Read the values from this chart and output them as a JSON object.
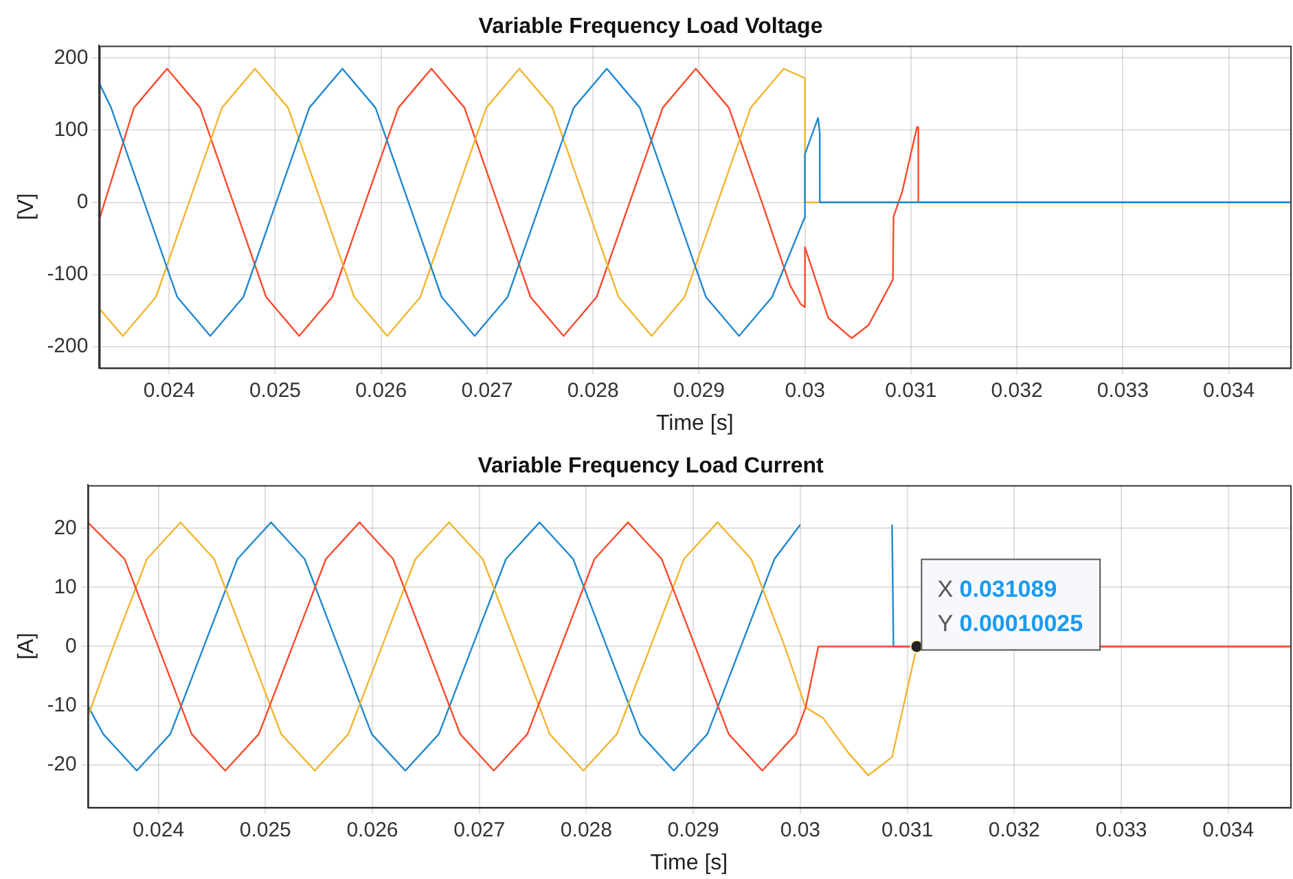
{
  "chart_data": [
    {
      "type": "line",
      "title": "Variable Frequency Load Voltage",
      "xlabel": "Time [s]",
      "ylabel": "[V]",
      "xlim": [
        0.02334,
        0.03458
      ],
      "xticks": [
        0.024,
        0.025,
        0.026,
        0.027,
        0.028,
        0.029,
        0.03,
        0.031,
        0.032,
        0.033,
        0.034
      ],
      "ylim": [
        -229,
        217
      ],
      "yticks": [
        -200,
        -100,
        0,
        100,
        200
      ],
      "grid": true,
      "legend": false,
      "marker": "none",
      "series": [
        {
          "color": "#fa4a2a",
          "x": [
            0.02334,
            0.023668,
            0.02398,
            0.024292,
            0.024604,
            0.024915,
            0.025227,
            0.025539,
            0.025851,
            0.026163,
            0.026475,
            0.026787,
            0.027098,
            0.02741,
            0.027722,
            0.028034,
            0.028346,
            0.028658,
            0.02897,
            0.029282,
            0.029594,
            0.02986,
            0.02996,
            0.03,
            0.03,
            0.03022,
            0.03044,
            0.0306,
            0.03083,
            0.030836,
            0.03092,
            0.031057,
            0.03107,
            0.03107,
            0.03458
          ],
          "values": [
            -24,
            131,
            185,
            131,
            0,
            -131,
            -185,
            -131,
            0,
            131,
            185,
            131,
            0,
            -131,
            -185,
            -131,
            0,
            131,
            185,
            131,
            0,
            -115,
            -141,
            -145,
            -62,
            -160,
            -188,
            -170,
            -107,
            -20,
            16,
            104,
            104,
            0,
            0
          ]
        },
        {
          "color": "#f2b52e",
          "x": [
            0.02334,
            0.023563,
            0.023875,
            0.024187,
            0.024498,
            0.02481,
            0.025122,
            0.025434,
            0.025746,
            0.026058,
            0.02637,
            0.026681,
            0.026993,
            0.027305,
            0.027617,
            0.027929,
            0.028241,
            0.028553,
            0.028864,
            0.029176,
            0.029488,
            0.0298,
            0.03,
            0.03,
            0.03458
          ],
          "values": [
            -147,
            -185,
            -131,
            0,
            131,
            185,
            131,
            0,
            -131,
            -185,
            -131,
            0,
            131,
            185,
            131,
            0,
            -131,
            -185,
            -131,
            0,
            131,
            185,
            172,
            0,
            0
          ]
        },
        {
          "color": "#1f88d0",
          "x": [
            0.02334,
            0.023452,
            0.023764,
            0.024076,
            0.024388,
            0.0247,
            0.025011,
            0.025323,
            0.025635,
            0.025947,
            0.026259,
            0.026571,
            0.026883,
            0.027194,
            0.027506,
            0.027818,
            0.02813,
            0.028442,
            0.028754,
            0.029066,
            0.029378,
            0.02969,
            0.03,
            0.03,
            0.030124,
            0.03014,
            0.03014,
            0.03458
          ],
          "values": [
            165,
            131,
            0,
            -131,
            -185,
            -131,
            0,
            131,
            185,
            131,
            0,
            -131,
            -185,
            -131,
            0,
            131,
            185,
            131,
            0,
            -131,
            -185,
            -131,
            -20,
            67,
            117,
            96,
            0,
            0
          ]
        }
      ]
    },
    {
      "type": "line",
      "title": "Variable Frequency Load Current",
      "xlabel": "Time [s]",
      "ylabel": "[A]",
      "xlim": [
        0.02334,
        0.03458
      ],
      "xticks": [
        0.024,
        0.025,
        0.026,
        0.027,
        0.028,
        0.029,
        0.03,
        0.031,
        0.032,
        0.033,
        0.034
      ],
      "ylim": [
        -27.2,
        27.3
      ],
      "yticks": [
        -20,
        -10,
        0,
        10,
        20
      ],
      "grid": true,
      "legend": false,
      "marker": "none",
      "annotations": [
        {
          "text": "X 0.031089\nY 0.00010025",
          "x": 0.031089,
          "y": 0.00010025
        }
      ],
      "series": [
        {
          "color": "#1f88d0",
          "x": [
            0.02334,
            0.023484,
            0.023798,
            0.024112,
            0.024425,
            0.024739,
            0.025053,
            0.025367,
            0.02568,
            0.025994,
            0.026308,
            0.026622,
            0.026935,
            0.027249,
            0.027563,
            0.027877,
            0.02819,
            0.028504,
            0.028818,
            0.029132,
            0.029445,
            0.029759,
            0.03,
            0.03043,
            0.030858,
            0.030871,
            0.03458
          ],
          "values": [
            -10,
            -14.8,
            -21,
            -14.8,
            0,
            14.8,
            21,
            14.8,
            0,
            -14.8,
            -21,
            -14.8,
            0,
            14.8,
            21,
            14.8,
            0,
            -14.8,
            -21,
            -14.8,
            0,
            14.8,
            20.6,
            null,
            20.6,
            0,
            0
          ]
        },
        {
          "color": "#f2b52e",
          "x": [
            0.02334,
            0.023579,
            0.023893,
            0.024207,
            0.024521,
            0.024834,
            0.025148,
            0.025462,
            0.025776,
            0.02609,
            0.026403,
            0.026717,
            0.027031,
            0.027345,
            0.027658,
            0.027972,
            0.028286,
            0.0286,
            0.028913,
            0.029227,
            0.029541,
            0.029855,
            0.03005,
            0.030213,
            0.03045,
            0.030636,
            0.030858,
            0.031089,
            0.03458
          ],
          "values": [
            -11.9,
            0,
            14.8,
            21,
            14.8,
            0,
            -14.8,
            -21,
            -14.8,
            0,
            14.8,
            21,
            14.8,
            0,
            -14.8,
            -21,
            -14.8,
            0,
            14.8,
            21,
            14.8,
            0,
            -10.3,
            -12.1,
            -18,
            -21.8,
            -18.7,
            0.00010025,
            0
          ]
        },
        {
          "color": "#fa4a2a",
          "x": [
            0.02334,
            0.023684,
            0.023998,
            0.024311,
            0.024625,
            0.024939,
            0.025253,
            0.025566,
            0.02588,
            0.026194,
            0.026508,
            0.026821,
            0.027135,
            0.027449,
            0.027763,
            0.028076,
            0.02839,
            0.028704,
            0.029018,
            0.029331,
            0.029645,
            0.029959,
            0.03005,
            0.030169,
            0.03458
          ],
          "values": [
            21,
            14.8,
            0,
            -14.8,
            -21,
            -14.8,
            0,
            14.8,
            21,
            14.8,
            0,
            -14.8,
            -21,
            -14.8,
            0,
            14.8,
            21,
            14.8,
            0,
            -14.8,
            -21,
            -14.8,
            -10.3,
            0,
            0
          ]
        }
      ]
    }
  ]
}
